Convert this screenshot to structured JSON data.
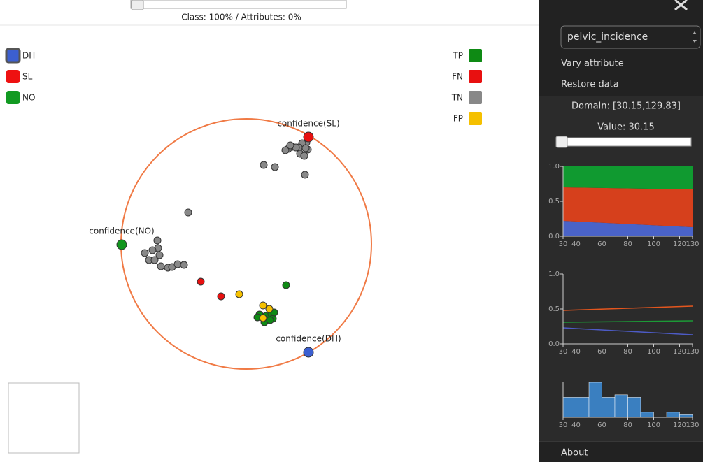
{
  "header": {
    "slider_label": "Class: 100% / Attributes: 0%"
  },
  "class_legend": [
    {
      "label": "DH",
      "color": "#3c5fd0"
    },
    {
      "label": "SL",
      "color": "#ee1111"
    },
    {
      "label": "NO",
      "color": "#129a22"
    }
  ],
  "outcome_legend": [
    {
      "label": "TP",
      "color": "#0e8a14"
    },
    {
      "label": "FN",
      "color": "#e81010"
    },
    {
      "label": "TN",
      "color": "#888888"
    },
    {
      "label": "FP",
      "color": "#f5c000"
    }
  ],
  "anchors": [
    {
      "label": "confidence(SL)",
      "color": "#e81010"
    },
    {
      "label": "confidence(NO)",
      "color": "#12961e"
    },
    {
      "label": "confidence(DH)",
      "color": "#3c5fd0"
    }
  ],
  "panel": {
    "attribute": "pelvic_incidence",
    "menu": [
      "Vary attribute",
      "Restore data"
    ],
    "domain": "Domain: [30.15,129.83]",
    "value": "Value: 30.15",
    "about": "About"
  },
  "chart_data": [
    {
      "type": "area",
      "stacked": true,
      "x": [
        30,
        80,
        130
      ],
      "series": [
        {
          "color": "#4a63c8",
          "values": [
            0.22,
            0.175,
            0.13
          ]
        },
        {
          "color": "#d6401c",
          "values": [
            0.48,
            0.51,
            0.54
          ]
        },
        {
          "color": "#109a30",
          "values": [
            0.3,
            0.315,
            0.33
          ]
        }
      ],
      "xlim": [
        30,
        130
      ],
      "ylim": [
        0,
        1
      ],
      "xticks": [
        30,
        40,
        60,
        80,
        100,
        120,
        130
      ],
      "yticks": [
        {
          "value": 0,
          "label": "0.0"
        },
        0.5,
        {
          "value": 1,
          "label": "1.0"
        }
      ]
    },
    {
      "type": "line",
      "x": [
        30,
        80,
        130
      ],
      "series": [
        {
          "color": "#e4561e",
          "values": [
            0.48,
            0.51,
            0.54
          ]
        },
        {
          "color": "#1c9a36",
          "values": [
            0.31,
            0.32,
            0.33
          ]
        },
        {
          "color": "#4d5bc6",
          "values": [
            0.23,
            0.18,
            0.13
          ]
        }
      ],
      "xlim": [
        30,
        130
      ],
      "ylim": [
        0,
        1
      ],
      "xticks": [
        30,
        40,
        60,
        80,
        100,
        120,
        130
      ],
      "yticks": [
        {
          "value": 0,
          "label": "0.0"
        },
        0.5,
        {
          "value": 1,
          "label": "1.0"
        }
      ]
    },
    {
      "type": "histogram",
      "bins": [
        30,
        40,
        50,
        60,
        70,
        80,
        90,
        100,
        110,
        120,
        130
      ],
      "values": [
        8,
        8,
        14,
        8,
        9,
        8,
        2,
        0,
        2,
        1
      ],
      "color": "#3a7fc0",
      "xlim": [
        30,
        130
      ],
      "xticks": [
        30,
        40,
        60,
        80,
        100,
        120,
        130
      ]
    }
  ]
}
